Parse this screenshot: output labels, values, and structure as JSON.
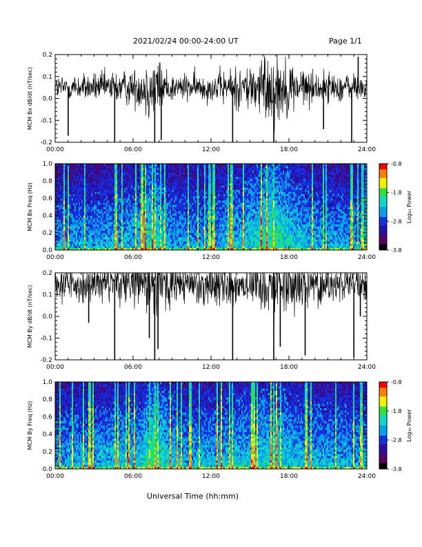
{
  "header": {
    "title": "2021/02/24  00:00-24:00 UT",
    "page": "Page 1/1"
  },
  "xlabel": "Universal Time (hh:mm)",
  "colors": {
    "trace": "#000000",
    "spectrogram_palette": [
      "#000000",
      "#5a0060",
      "#2a10a0",
      "#1430e0",
      "#0aa0e8",
      "#10d8c8",
      "#30e040",
      "#f0f000",
      "#ff8000",
      "#ff0000"
    ]
  },
  "chart_data": [
    {
      "type": "line",
      "id": "bx-trace",
      "ylabel": "MCM Bx dB/dt (nT/sec)",
      "ylim": [
        -0.2,
        0.2
      ],
      "yticks": [
        "0.2",
        "0.1",
        "0.0",
        "-0.1",
        "-0.2"
      ],
      "xticks": [
        "00:00",
        "06:00",
        "12:00",
        "18:00",
        "24:00"
      ],
      "xlim_hours": [
        0,
        24
      ],
      "baseline": 0.05,
      "noise_level": 0.04,
      "activity": [
        [
          0,
          0.7
        ],
        [
          3,
          0.8
        ],
        [
          6.5,
          1.1
        ],
        [
          7.3,
          2.0
        ],
        [
          8,
          1.6
        ],
        [
          9,
          0.8
        ],
        [
          12,
          0.8
        ],
        [
          15,
          1.4
        ],
        [
          16.2,
          2.0
        ],
        [
          17,
          2.1
        ],
        [
          18.5,
          1.3
        ],
        [
          20,
          0.9
        ],
        [
          24,
          0.8
        ]
      ],
      "spikes": [
        {
          "time": "01:00",
          "value": -0.17
        },
        {
          "time": "04:35",
          "value": -0.2
        },
        {
          "time": "07:40",
          "value": -0.2
        },
        {
          "time": "08:10",
          "value": -0.19
        },
        {
          "time": "13:40",
          "value": -0.2
        },
        {
          "time": "16:50",
          "value": -0.2
        },
        {
          "time": "20:40",
          "value": -0.14
        },
        {
          "time": "22:50",
          "value": -0.2
        },
        {
          "time": "23:20",
          "value": 0.19
        }
      ]
    },
    {
      "type": "heatmap",
      "id": "bx-spec",
      "ylabel": "MCM Bx Freq (Hz)",
      "ylim": [
        0,
        1.0
      ],
      "yticks": [
        "1.0",
        "0.8",
        "0.6",
        "0.4",
        "0.2",
        "0.0"
      ],
      "xticks": [
        "00:00",
        "06:00",
        "12:00",
        "18:00",
        "24:00"
      ],
      "xlim_hours": [
        0,
        24
      ],
      "colorbar": {
        "label": "Log₁₀ Power",
        "ticks": [
          "-0.8",
          "-1.8",
          "-2.8",
          "-3.8"
        ],
        "range": [
          -3.8,
          -0.8
        ]
      }
    },
    {
      "type": "line",
      "id": "by-trace",
      "ylabel": "MCM By dB/dt (nT/sec)",
      "ylim": [
        -0.2,
        0.2
      ],
      "yticks": [
        "0.2",
        "0.1",
        "0.0",
        "-0.1",
        "-0.2"
      ],
      "xticks": [
        "00:00",
        "06:00",
        "12:00",
        "18:00",
        "24:00"
      ],
      "xlim_hours": [
        0,
        24
      ],
      "baseline": 0.15,
      "noise_level": 0.045,
      "activity": [
        [
          0,
          0.9
        ],
        [
          3,
          1.0
        ],
        [
          6.5,
          1.3
        ],
        [
          7.5,
          2.2
        ],
        [
          8.5,
          1.5
        ],
        [
          10,
          1.0
        ],
        [
          12,
          1.1
        ],
        [
          15,
          1.3
        ],
        [
          17,
          1.6
        ],
        [
          19,
          1.1
        ],
        [
          24,
          0.9
        ]
      ],
      "spikes": [
        {
          "time": "02:35",
          "value": -0.03
        },
        {
          "time": "04:35",
          "value": -0.2
        },
        {
          "time": "07:15",
          "value": -0.1
        },
        {
          "time": "07:40",
          "value": -0.2
        },
        {
          "time": "07:55",
          "value": -0.15
        },
        {
          "time": "13:40",
          "value": -0.2
        },
        {
          "time": "16:50",
          "value": -0.2
        },
        {
          "time": "17:20",
          "value": -0.14
        },
        {
          "time": "19:15",
          "value": -0.18
        },
        {
          "time": "23:00",
          "value": -0.19
        },
        {
          "time": "23:30",
          "value": -0.0
        }
      ]
    },
    {
      "type": "heatmap",
      "id": "by-spec",
      "ylabel": "MCM By Freq (Hz)",
      "ylim": [
        0,
        1.0
      ],
      "yticks": [
        "1.0",
        "0.8",
        "0.6",
        "0.4",
        "0.2",
        "0.0"
      ],
      "xticks": [
        "00:00",
        "06:00",
        "12:00",
        "18:00",
        "24:00"
      ],
      "xlim_hours": [
        0,
        24
      ],
      "colorbar": {
        "label": "Log₁₀ Power",
        "ticks": [
          "-0.8",
          "-1.8",
          "-2.8",
          "-3.8"
        ],
        "range": [
          -3.8,
          -0.8
        ]
      }
    }
  ]
}
